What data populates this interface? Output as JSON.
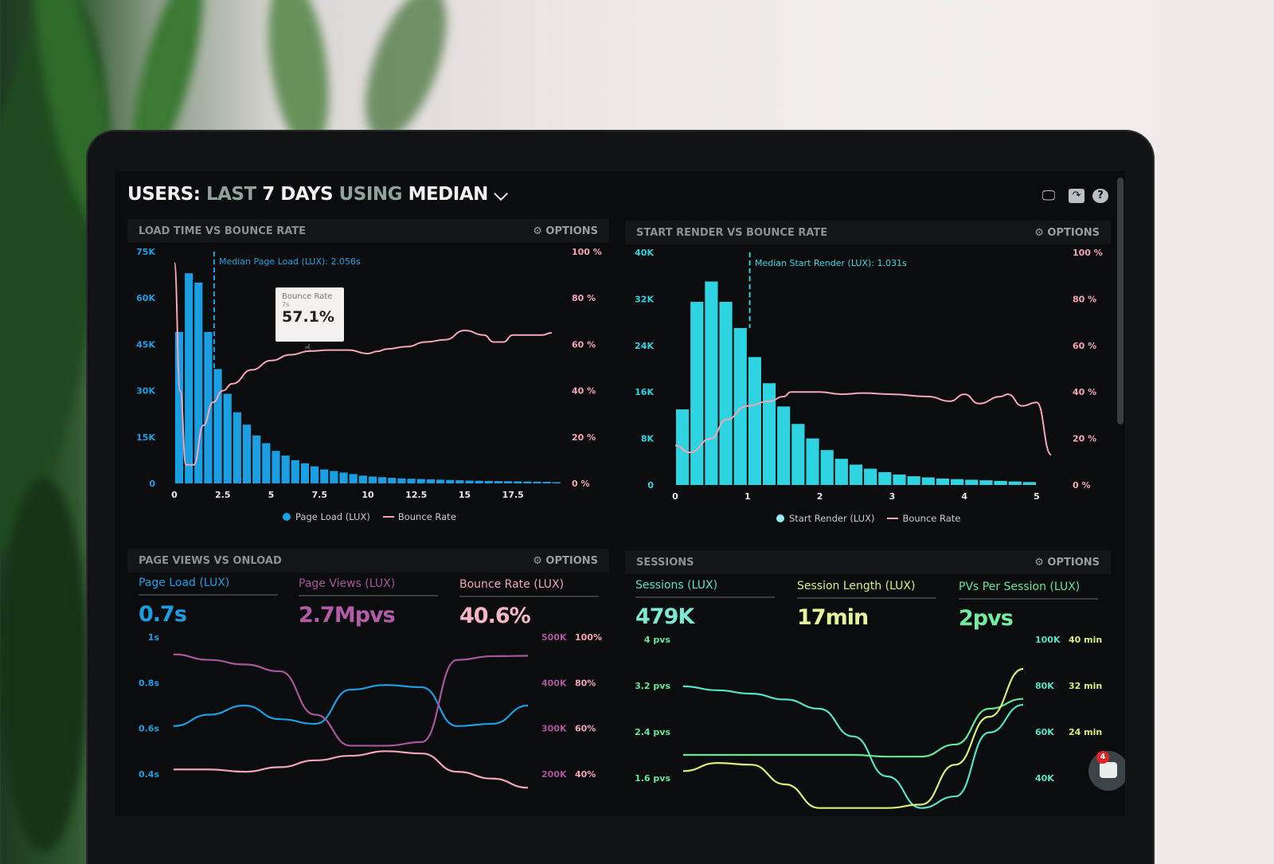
{
  "header": {
    "title_parts": [
      "USERS:",
      "LAST",
      "7 DAYS",
      "USING",
      "MEDIAN"
    ],
    "dropdown_icon": "chevron-down-icon",
    "icons": [
      "monitor-icon",
      "share-icon",
      "help-icon"
    ]
  },
  "colors": {
    "page_load": "#1a9fe3",
    "start_render": "#2fd4e2",
    "bounce": "#f4a5b8",
    "page_views": "#a9569d",
    "sessions": "#56e3c4",
    "session_length": "#d7ef7a",
    "pvs": "#63e89b"
  },
  "panels": {
    "load": {
      "title": "LOAD TIME VS BOUNCE RATE",
      "options": "OPTIONS",
      "median_label": "Median Page Load (LUX): 2.056s",
      "tooltip": {
        "title": "Bounce Rate",
        "x": "7s",
        "value": "57.1%"
      },
      "legend": [
        "Page Load (LUX)",
        "Bounce Rate"
      ]
    },
    "render": {
      "title": "START RENDER VS BOUNCE RATE",
      "options": "OPTIONS",
      "median_label": "Median Start Render (LUX): 1.031s",
      "legend": [
        "Start Render (LUX)",
        "Bounce Rate"
      ]
    },
    "pageviews": {
      "title": "PAGE VIEWS VS ONLOAD",
      "options": "OPTIONS",
      "stats": [
        {
          "label": "Page Load (LUX)",
          "value": "0.7s"
        },
        {
          "label": "Page Views (LUX)",
          "value": "2.7Mpvs"
        },
        {
          "label": "Bounce Rate (LUX)",
          "value": "40.6%"
        }
      ]
    },
    "sessions": {
      "title": "SESSIONS",
      "options": "OPTIONS",
      "stats": [
        {
          "label": "Sessions (LUX)",
          "value": "479K"
        },
        {
          "label": "Session Length (LUX)",
          "value": "17min"
        },
        {
          "label": "PVs Per Session (LUX)",
          "value": "2pvs"
        }
      ]
    }
  },
  "chat": {
    "icon": "chat-icon",
    "badge": "4"
  },
  "chart_data": [
    {
      "type": "bar",
      "title": "LOAD TIME VS BOUNCE RATE",
      "xlim": [
        0,
        19.75
      ],
      "xticks": [
        "0",
        "2.5",
        "5",
        "7.5",
        "10",
        "12.5",
        "15",
        "17.5"
      ],
      "ylim": [
        0,
        75000
      ],
      "yticks": [
        "0",
        "15K",
        "30K",
        "45K",
        "60K",
        "75K"
      ],
      "y2lim": [
        0,
        100
      ],
      "y2ticks": [
        "0 %",
        "20 %",
        "40 %",
        "60 %",
        "80 %",
        "100 %"
      ],
      "median": 2.056,
      "bin_width": 0.5,
      "series": [
        {
          "name": "Page Load (LUX)",
          "x": [
            0,
            0.5,
            1,
            1.5,
            2,
            2.5,
            3,
            3.5,
            4,
            4.5,
            5,
            5.5,
            6,
            6.5,
            7,
            7.5,
            8,
            8.5,
            9,
            9.5,
            10,
            10.5,
            11,
            11.5,
            12,
            12.5,
            13,
            13.5,
            14,
            14.5,
            15,
            15.5,
            16,
            16.5,
            17,
            17.5,
            18,
            18.5,
            19,
            19.5
          ],
          "values": [
            49,
            68,
            65,
            49,
            37,
            29,
            23,
            19,
            15.5,
            13,
            10.5,
            9,
            7.5,
            6.5,
            5.5,
            4.5,
            4,
            3.5,
            3,
            2.5,
            2.2,
            2,
            1.8,
            1.6,
            1.5,
            1.4,
            1.3,
            1.2,
            1.1,
            1,
            0.9,
            0.85,
            0.8,
            0.75,
            0.7,
            0.65,
            0.6,
            0.55,
            0.5,
            0.4
          ],
          "unit": "K"
        },
        {
          "name": "Bounce Rate",
          "type": "line",
          "x": [
            0,
            0.3,
            0.6,
            1,
            1.5,
            2,
            2.5,
            3,
            4,
            5,
            6,
            7,
            8,
            9,
            10,
            10.5,
            11,
            12,
            13,
            14,
            15,
            16,
            16.5,
            17,
            17.5,
            18,
            19,
            19.5
          ],
          "values": [
            95,
            40,
            8,
            8,
            25,
            35,
            40,
            43,
            49,
            53,
            55.5,
            57.1,
            57.5,
            57.5,
            56,
            57,
            58,
            59,
            61,
            62,
            66,
            64,
            61,
            61,
            64,
            64,
            64,
            65
          ]
        }
      ]
    },
    {
      "type": "bar",
      "title": "START RENDER VS BOUNCE RATE",
      "xlim": [
        -0.2,
        5.2
      ],
      "xticks": [
        "0",
        "1",
        "2",
        "3",
        "4",
        "5"
      ],
      "ylim": [
        0,
        40000
      ],
      "yticks": [
        "0",
        "8K",
        "16K",
        "24K",
        "32K",
        "40K"
      ],
      "y2lim": [
        0,
        100
      ],
      "y2ticks": [
        "0 %",
        "20 %",
        "40 %",
        "60 %",
        "80 %",
        "100 %"
      ],
      "median": 1.031,
      "bin_width": 0.2,
      "series": [
        {
          "name": "Start Render (LUX)",
          "x": [
            0.1,
            0.3,
            0.5,
            0.7,
            0.9,
            1.1,
            1.3,
            1.5,
            1.7,
            1.9,
            2.1,
            2.3,
            2.5,
            2.7,
            2.9,
            3.1,
            3.3,
            3.5,
            3.7,
            3.9,
            4.1,
            4.3,
            4.5,
            4.7,
            4.9
          ],
          "values": [
            13,
            31.5,
            35,
            31.5,
            27,
            22,
            17.5,
            13.5,
            10.5,
            8,
            6,
            4.5,
            3.5,
            2.8,
            2.2,
            1.8,
            1.5,
            1.3,
            1.1,
            1,
            0.9,
            0.8,
            0.7,
            0.6,
            0.5
          ],
          "unit": "K"
        },
        {
          "name": "Bounce Rate",
          "type": "line",
          "x": [
            0,
            0.2,
            0.5,
            0.7,
            1,
            1.3,
            1.5,
            1.6,
            2,
            2.3,
            2.6,
            3,
            3.5,
            3.8,
            4,
            4.2,
            4.5,
            4.6,
            4.8,
            5,
            5.2
          ],
          "values": [
            17,
            14,
            20,
            28,
            34,
            36,
            38,
            40,
            40,
            39,
            39.5,
            39,
            38,
            36,
            39,
            35,
            38,
            39,
            34,
            35.5,
            13
          ]
        }
      ]
    },
    {
      "type": "line",
      "title": "PAGE VIEWS VS ONLOAD",
      "yticks": [
        "0.4s",
        "0.6s",
        "0.8s",
        "1s"
      ],
      "ylim": [
        0.4,
        1.0
      ],
      "y2ticks": [
        "200K",
        "300K",
        "400K",
        "500K"
      ],
      "y2lim": [
        200,
        500
      ],
      "y3ticks": [
        "40%",
        "60%",
        "80%",
        "100%"
      ],
      "y3lim": [
        40,
        100
      ],
      "series": [
        {
          "key": "page_load",
          "axis": 1,
          "values": [
            0.61,
            0.66,
            0.7,
            0.64,
            0.62,
            0.77,
            0.79,
            0.78,
            0.61,
            0.62,
            0.7
          ]
        },
        {
          "key": "page_views",
          "axis": 2,
          "values": [
            462,
            450,
            440,
            425,
            330,
            262,
            262,
            270,
            450,
            458,
            459
          ]
        },
        {
          "key": "bounce",
          "axis": 3,
          "values": [
            42,
            42,
            41,
            43,
            46,
            48,
            50,
            49,
            41,
            38,
            34
          ]
        }
      ]
    },
    {
      "type": "line",
      "title": "SESSIONS",
      "yticks": [
        "1.6 pvs",
        "2.4 pvs",
        "3.2 pvs",
        "4 pvs"
      ],
      "ylim": [
        1.6,
        4
      ],
      "y2ticks": [
        "40K",
        "60K",
        "80K",
        "100K"
      ],
      "y2lim": [
        40,
        100
      ],
      "y3ticks": [
        "24 min",
        "32 min",
        "40 min"
      ],
      "y3lim": [
        16,
        40
      ],
      "series": [
        {
          "key": "sessions",
          "axis": 2,
          "values": [
            79.7,
            78,
            76.5,
            74,
            70,
            58,
            40.7,
            27,
            32,
            59.7,
            71.7
          ]
        },
        {
          "key": "pvs",
          "axis": 1,
          "values": [
            2,
            2,
            2,
            2,
            2,
            2,
            1.97,
            1.97,
            2.18,
            2.8,
            2.97
          ]
        },
        {
          "key": "session_length",
          "axis": 3,
          "values": [
            17.2,
            18.6,
            18.3,
            14.9,
            10.8,
            10.8,
            10.8,
            11.4,
            18.3,
            26.6,
            34.9
          ]
        }
      ]
    }
  ]
}
